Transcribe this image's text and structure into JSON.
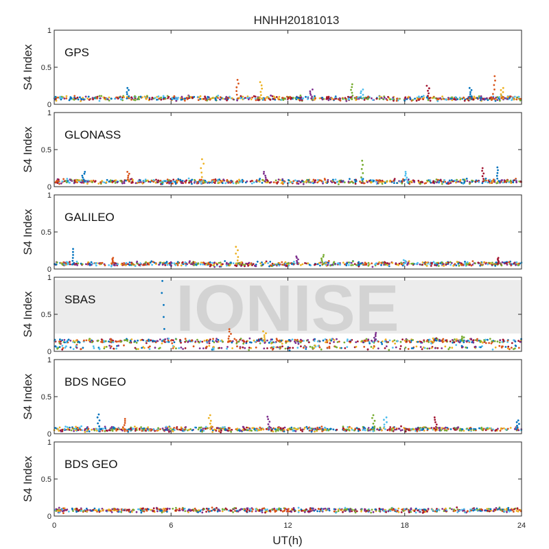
{
  "title": "HNHH20181013",
  "watermark": "IONISE",
  "chart_data": {
    "type": "scatter",
    "title": "HNHH20181013",
    "xlabel": "UT(h)",
    "ylabel": "S4 Index",
    "xlim": [
      0,
      24
    ],
    "ylim": [
      0,
      1
    ],
    "xticks": [
      0,
      6,
      12,
      18,
      24
    ],
    "yticks": [
      0,
      0.5,
      1
    ],
    "series_colors": [
      "#0072BD",
      "#D95319",
      "#EDB120",
      "#7E2F8E",
      "#77AC30",
      "#4DBEEE",
      "#A2142F"
    ],
    "panels": [
      {
        "label": "GPS",
        "ylabel": "S4 Index",
        "baseline": 0.08,
        "spikes": [
          [
            3.8,
            0.22
          ],
          [
            9.4,
            0.33
          ],
          [
            10.6,
            0.3
          ],
          [
            13.2,
            0.2
          ],
          [
            15.3,
            0.27
          ],
          [
            15.8,
            0.2
          ],
          [
            19.2,
            0.25
          ],
          [
            21.4,
            0.22
          ],
          [
            22.6,
            0.38
          ],
          [
            23.0,
            0.22
          ]
        ]
      },
      {
        "label": "GLONASS",
        "ylabel": "S4 Index",
        "baseline": 0.07,
        "spikes": [
          [
            1.5,
            0.2
          ],
          [
            3.8,
            0.2
          ],
          [
            7.6,
            0.37
          ],
          [
            10.8,
            0.2
          ],
          [
            15.8,
            0.35
          ],
          [
            18.1,
            0.2
          ],
          [
            22.0,
            0.25
          ],
          [
            22.8,
            0.26
          ]
        ]
      },
      {
        "label": "GALILEO",
        "ylabel": "S4 Index",
        "baseline": 0.07,
        "spikes": [
          [
            1.0,
            0.27
          ],
          [
            3.0,
            0.15
          ],
          [
            9.4,
            0.3
          ],
          [
            12.5,
            0.17
          ],
          [
            13.8,
            0.19
          ],
          [
            18.0,
            0.12
          ],
          [
            22.8,
            0.15
          ]
        ]
      },
      {
        "label": "SBAS",
        "ylabel": "S4 Index",
        "baseline": 0.14,
        "spikes": [
          [
            5.6,
            0.95
          ],
          [
            9.0,
            0.3
          ],
          [
            10.8,
            0.27
          ],
          [
            16.5,
            0.25
          ],
          [
            21.0,
            0.2
          ]
        ]
      },
      {
        "label": "BDS NGEO",
        "ylabel": "S4 Index",
        "baseline": 0.06,
        "spikes": [
          [
            2.3,
            0.26
          ],
          [
            3.6,
            0.2
          ],
          [
            8.0,
            0.25
          ],
          [
            11.0,
            0.23
          ],
          [
            16.4,
            0.25
          ],
          [
            17.0,
            0.22
          ],
          [
            19.6,
            0.22
          ],
          [
            23.8,
            0.18
          ]
        ]
      },
      {
        "label": "BDS GEO",
        "ylabel": "S4 Index",
        "baseline": 0.08,
        "spikes": []
      }
    ]
  }
}
